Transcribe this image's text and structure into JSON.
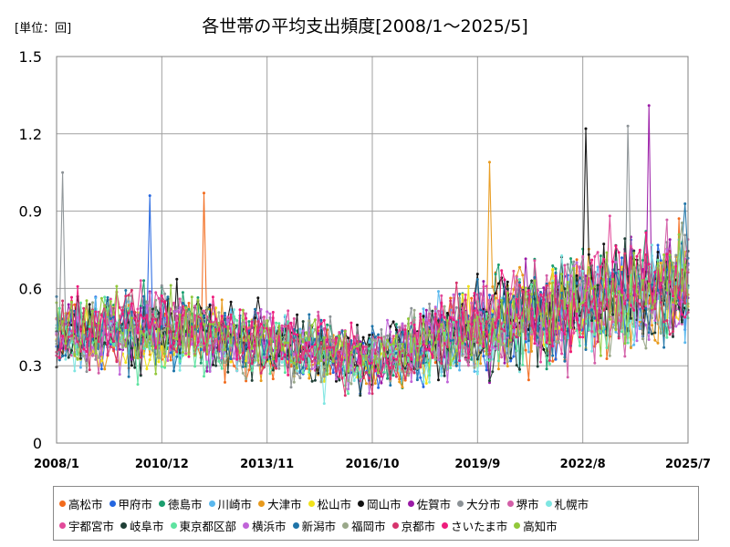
{
  "header": {
    "unit": "[単位：回]",
    "title": "各世帯の平均支出頻度[2008/1～2025/5]"
  },
  "chart_data": {
    "type": "line",
    "title": "各世帯の平均支出頻度[2008/1～2025/5]",
    "unit": "[単位：回]",
    "xlabel": "",
    "ylabel": "",
    "x_start": "2008-01",
    "x_end": "2025-07",
    "xlim": [
      "2008-01",
      "2025-07"
    ],
    "ylim": [
      0,
      1.5
    ],
    "x_tick_labels": [
      "2008/1",
      "2010/12",
      "2013/11",
      "2016/10",
      "2019/9",
      "2022/8",
      "2025/7"
    ],
    "y_ticks": [
      0,
      0.3,
      0.6,
      0.9,
      1.2,
      1.5
    ],
    "y_tick_labels": [
      "0",
      "0.3",
      "0.6",
      "0.9",
      "1.2",
      "1.5"
    ],
    "grid": true,
    "legend_position": "bottom",
    "series_profile": {
      "note_points": [
        "2008-01",
        "2010-12",
        "2013-11",
        "2016-10",
        "2019-09",
        "2022-08",
        "2025-05"
      ],
      "approx_mean": [
        0.42,
        0.45,
        0.4,
        0.33,
        0.45,
        0.55,
        0.62
      ],
      "approx_spread": [
        0.12,
        0.14,
        0.12,
        0.11,
        0.16,
        0.2,
        0.2
      ]
    },
    "notable_peaks": [
      {
        "series": "佐賀市",
        "x": "2024-06",
        "y": 1.31
      },
      {
        "series": "大分市",
        "x": "2023-11",
        "y": 1.23
      },
      {
        "series": "岡山市",
        "x": "2022-09",
        "y": 1.22
      },
      {
        "series": "大津市",
        "x": "2020-01",
        "y": 1.09
      },
      {
        "series": "大分市",
        "x": "2008-03",
        "y": 1.05
      },
      {
        "series": "高松市",
        "x": "2012-02",
        "y": 0.97
      },
      {
        "series": "甲府市",
        "x": "2010-08",
        "y": 0.96
      }
    ],
    "series": [
      {
        "name": "高松市",
        "color": "#f26b1d"
      },
      {
        "name": "甲府市",
        "color": "#2466e0"
      },
      {
        "name": "徳島市",
        "color": "#1a9e6e"
      },
      {
        "name": "川崎市",
        "color": "#5ab8ee"
      },
      {
        "name": "大津市",
        "color": "#e89a1c"
      },
      {
        "name": "松山市",
        "color": "#f2e21a"
      },
      {
        "name": "岡山市",
        "color": "#111111"
      },
      {
        "name": "佐賀市",
        "color": "#9a1aa6"
      },
      {
        "name": "大分市",
        "color": "#8c9296"
      },
      {
        "name": "堺市",
        "color": "#d35fa8"
      },
      {
        "name": "札幌市",
        "color": "#7fe6e2"
      },
      {
        "name": "宇都宮市",
        "color": "#e24a9a"
      },
      {
        "name": "岐阜市",
        "color": "#1f3f36"
      },
      {
        "name": "東京都区部",
        "color": "#5ee3a0"
      },
      {
        "name": "横浜市",
        "color": "#c064d8"
      },
      {
        "name": "新潟市",
        "color": "#1f74a8"
      },
      {
        "name": "福岡市",
        "color": "#9aa88a"
      },
      {
        "name": "京都市",
        "color": "#d6336c"
      },
      {
        "name": "さいたま市",
        "color": "#ee1c7c"
      },
      {
        "name": "高知市",
        "color": "#92c83a"
      }
    ]
  }
}
